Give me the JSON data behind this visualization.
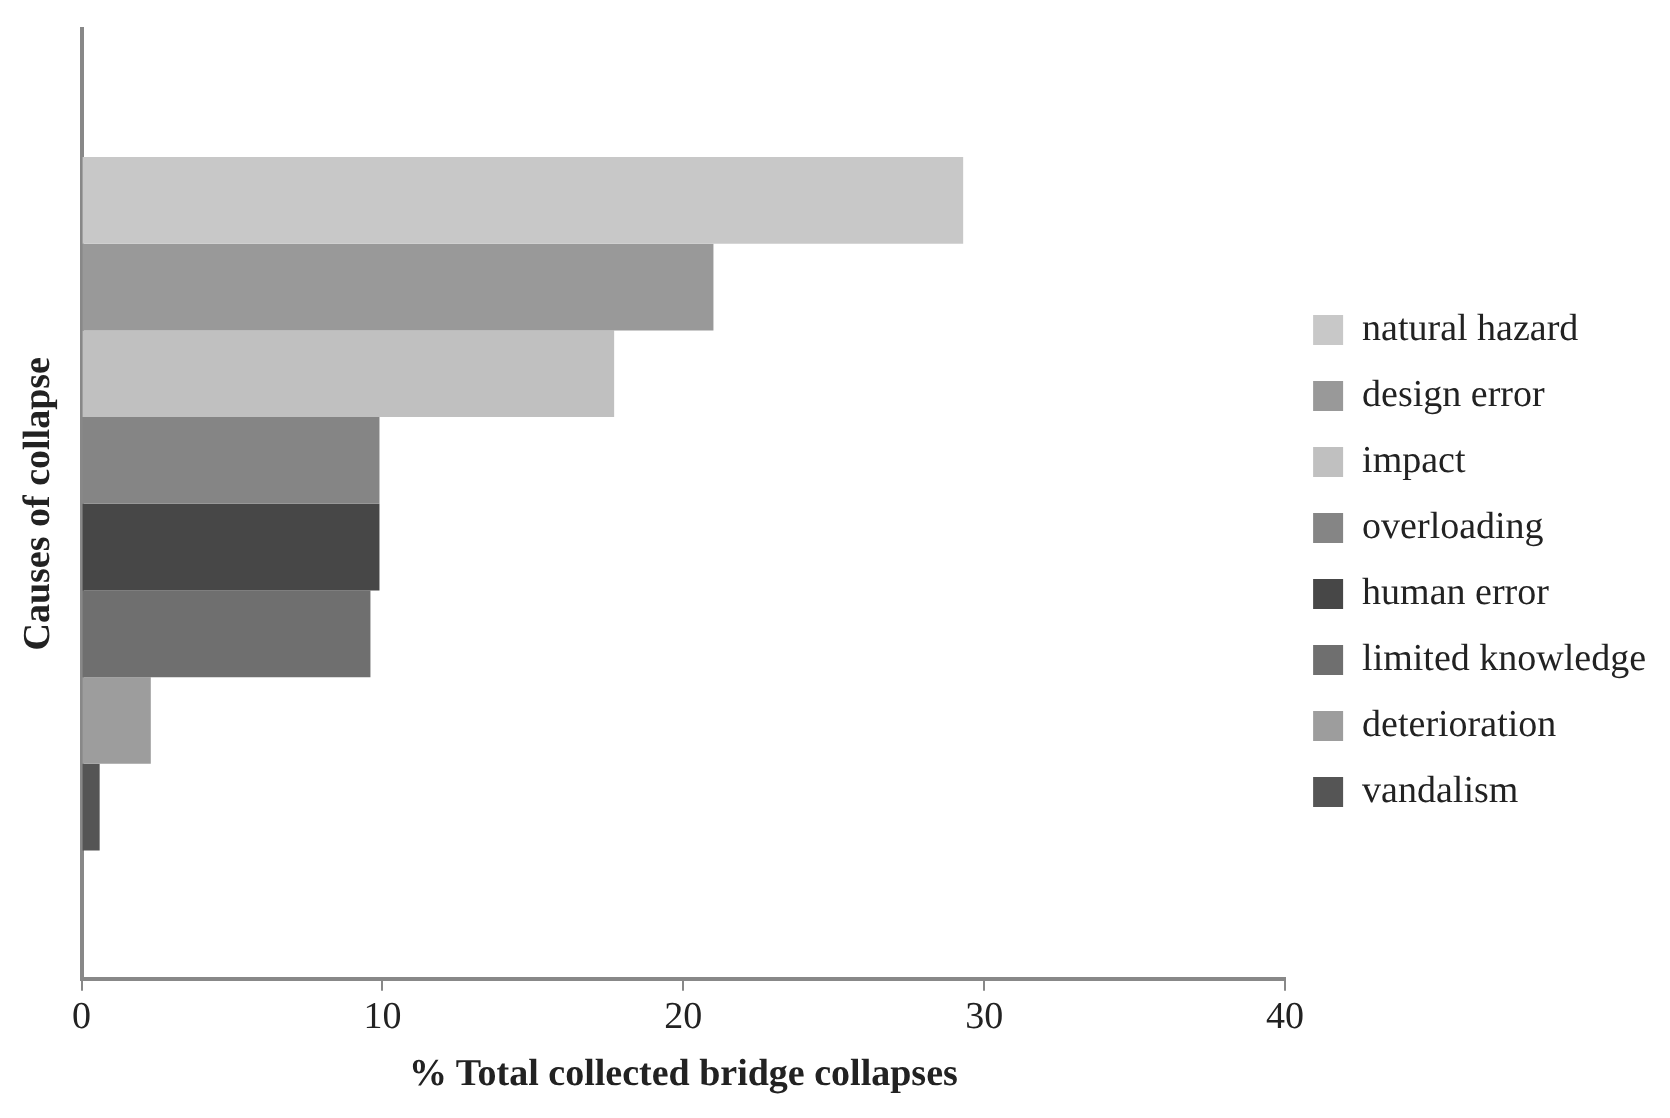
{
  "chart_data": {
    "type": "bar",
    "orientation": "horizontal",
    "xlabel": "% Total collected bridge collapses",
    "ylabel": "Causes of collapse",
    "categories": [
      null
    ],
    "series": [
      {
        "name": "natural hazard",
        "color": "#c8c8c8",
        "values": [
          29.3
        ]
      },
      {
        "name": "design error",
        "color": "#999999",
        "values": [
          21.0
        ]
      },
      {
        "name": "impact",
        "color": "#c0c0c0",
        "values": [
          17.7
        ]
      },
      {
        "name": "overloading",
        "color": "#858585",
        "values": [
          9.9
        ]
      },
      {
        "name": "human error",
        "color": "#474747",
        "values": [
          9.9
        ]
      },
      {
        "name": "limited knowledge",
        "color": "#6f6f6f",
        "values": [
          9.6
        ]
      },
      {
        "name": "deterioration",
        "color": "#9d9d9d",
        "values": [
          2.3
        ]
      },
      {
        "name": "vandalism",
        "color": "#555555",
        "values": [
          0.6
        ]
      }
    ],
    "xlim": [
      0,
      40
    ],
    "xticks": [
      0,
      10,
      20,
      30,
      40
    ],
    "grid": false,
    "legend": "right"
  }
}
